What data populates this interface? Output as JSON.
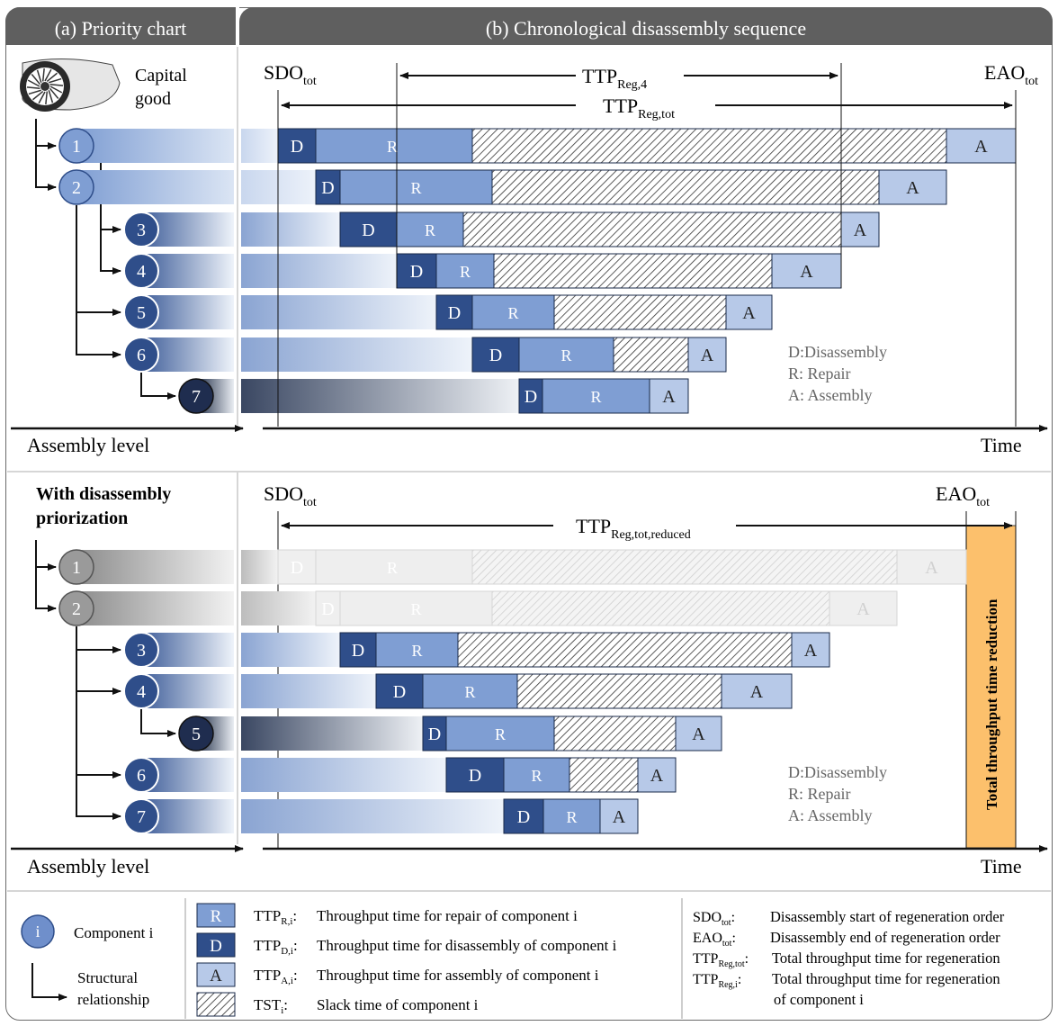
{
  "headers": {
    "priority_chart": "(a) Priority chart",
    "disassembly_sequence": "(b) Chronological disassembly sequence"
  },
  "top": {
    "capital_good": [
      "Capital",
      "good"
    ],
    "sdo": "SDO",
    "sdo_sub": "tot",
    "eao": "EAO",
    "eao_sub": "tot",
    "ttp4": "TTP",
    "ttp4_sub": "Reg,4",
    "ttptot": "TTP",
    "ttptot_sub": "Reg,tot",
    "axis_left": "Assembly level",
    "axis_right": "Time",
    "legend": [
      "D:Disassembly",
      "R: Repair",
      "A: Assembly"
    ],
    "rows": [
      {
        "id": "1",
        "d": "D",
        "r": "R",
        "a": "A"
      },
      {
        "id": "2",
        "d": "D",
        "r": "R",
        "a": "A"
      },
      {
        "id": "3",
        "d": "D",
        "r": "R",
        "a": "A"
      },
      {
        "id": "4",
        "d": "D",
        "r": "R",
        "a": "A"
      },
      {
        "id": "5",
        "d": "D",
        "r": "R",
        "a": "A"
      },
      {
        "id": "6",
        "d": "D",
        "r": "R",
        "a": "A"
      },
      {
        "id": "7",
        "d": "D",
        "r": "R",
        "a": "A"
      }
    ]
  },
  "bottom": {
    "title": [
      "With disassembly",
      "priorization"
    ],
    "sdo": "SDO",
    "sdo_sub": "tot",
    "eao": "EAO",
    "eao_sub": "tot",
    "ttp": "TTP",
    "ttp_sub": "Reg,tot,reduced",
    "reduction": "Total throughput time reduction",
    "axis_left": "Assembly level",
    "axis_right": "Time",
    "legend": [
      "D:Disassembly",
      "R: Repair",
      "A: Assembly"
    ],
    "rows": [
      {
        "id": "1",
        "d": "D",
        "r": "R",
        "a": "A"
      },
      {
        "id": "2",
        "d": "D",
        "r": "R",
        "a": "A"
      },
      {
        "id": "3",
        "d": "D",
        "r": "R",
        "a": "A"
      },
      {
        "id": "4",
        "d": "D",
        "r": "R",
        "a": "A"
      },
      {
        "id": "5",
        "d": "D",
        "r": "R",
        "a": "A"
      },
      {
        "id": "6",
        "d": "D",
        "r": "R",
        "a": "A"
      },
      {
        "id": "7",
        "d": "D",
        "r": "R",
        "a": "A"
      }
    ]
  },
  "key": {
    "component": {
      "symbol": "i",
      "label": "Component i"
    },
    "structural": [
      "Structural",
      "relationship"
    ],
    "items": [
      {
        "box": "R",
        "term": "TTP",
        "sub": "R,i",
        "desc": "Throughput time for repair of component i"
      },
      {
        "box": "D",
        "term": "TTP",
        "sub": "D,i",
        "desc": "Throughput time for disassembly of component i"
      },
      {
        "box": "A",
        "term": "TTP",
        "sub": "A,i",
        "desc": "Throughput time for assembly of component i"
      },
      {
        "box": "",
        "term": "TST",
        "sub": "i",
        "desc": "Slack time of component i"
      }
    ],
    "abbrev": [
      {
        "term": "SDO",
        "sub": "tot",
        "desc": "Disassembly start of regeneration order"
      },
      {
        "term": "EAO",
        "sub": "tot",
        "desc": "Disassembly end of regeneration order"
      },
      {
        "term": "TTP",
        "sub": "Reg,tot",
        "desc": "Total throughput time for regeneration"
      },
      {
        "term": "TTP",
        "sub": "Reg,i",
        "desc": "Total throughput time for regeneration",
        "desc2": "of component i"
      }
    ]
  },
  "colors": {
    "dark": "#2f4e8a",
    "mid": "#7f9ed3",
    "light": "#b7c9e8",
    "header": "#5f5f5f",
    "orange": "#fcc06c"
  }
}
